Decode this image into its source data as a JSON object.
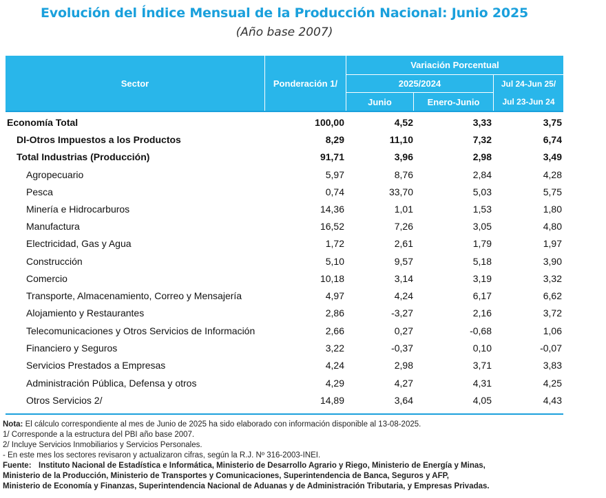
{
  "title": "Evolución del Índice Mensual de la Producción Nacional: Junio 2025",
  "subtitle": "(Año base 2007)",
  "header": {
    "sector": "Sector",
    "ponderacion": "Ponderación 1/",
    "variacion": "Variación Porcentual",
    "periodo": "2025/2024",
    "junio": "Junio",
    "enero_junio": "Enero-Junio",
    "anual_1": "Jul 24-Jun 25/",
    "anual_2": "Jul 23-Jun 24"
  },
  "rows": [
    {
      "sector": "Economía Total",
      "ponderacion": "100,00",
      "junio": "4,52",
      "enero_junio": "3,33",
      "anual": "3,75"
    },
    {
      "sector": "DI-Otros Impuestos a los Productos",
      "ponderacion": "8,29",
      "junio": "11,10",
      "enero_junio": "7,32",
      "anual": "6,74"
    },
    {
      "sector": "Total  Industrias (Producción)",
      "ponderacion": "91,71",
      "junio": "3,96",
      "enero_junio": "2,98",
      "anual": "3,49"
    },
    {
      "sector": "Agropecuario",
      "ponderacion": "5,97",
      "junio": "8,76",
      "enero_junio": "2,84",
      "anual": "4,28"
    },
    {
      "sector": "Pesca",
      "ponderacion": "0,74",
      "junio": "33,70",
      "enero_junio": "5,03",
      "anual": "5,75"
    },
    {
      "sector": "Minería e Hidrocarburos",
      "ponderacion": "14,36",
      "junio": "1,01",
      "enero_junio": "1,53",
      "anual": "1,80"
    },
    {
      "sector": "Manufactura",
      "ponderacion": "16,52",
      "junio": "7,26",
      "enero_junio": "3,05",
      "anual": "4,80"
    },
    {
      "sector": "Electricidad, Gas y Agua",
      "ponderacion": "1,72",
      "junio": "2,61",
      "enero_junio": "1,79",
      "anual": "1,97"
    },
    {
      "sector": "Construcción",
      "ponderacion": "5,10",
      "junio": "9,57",
      "enero_junio": "5,18",
      "anual": "3,90"
    },
    {
      "sector": "Comercio",
      "ponderacion": "10,18",
      "junio": "3,14",
      "enero_junio": "3,19",
      "anual": "3,32"
    },
    {
      "sector": "Transporte, Almacenamiento, Correo y Mensajería",
      "ponderacion": "4,97",
      "junio": "4,24",
      "enero_junio": "6,17",
      "anual": "6,62"
    },
    {
      "sector": "Alojamiento y Restaurantes",
      "ponderacion": "2,86",
      "junio": "-3,27",
      "enero_junio": "2,16",
      "anual": "3,72"
    },
    {
      "sector": "Telecomunicaciones y Otros Servicios de Información",
      "ponderacion": "2,66",
      "junio": "0,27",
      "enero_junio": "-0,68",
      "anual": "1,06"
    },
    {
      "sector": "Financiero y Seguros",
      "ponderacion": "3,22",
      "junio": "-0,37",
      "enero_junio": "0,10",
      "anual": "-0,07"
    },
    {
      "sector": "Servicios Prestados a Empresas",
      "ponderacion": "4,24",
      "junio": "2,98",
      "enero_junio": "3,71",
      "anual": "3,83"
    },
    {
      "sector": "Administración Pública, Defensa y otros",
      "ponderacion": "4,29",
      "junio": "4,27",
      "enero_junio": "4,31",
      "anual": "4,25"
    },
    {
      "sector": "Otros Servicios 2/",
      "ponderacion": "14,89",
      "junio": "3,64",
      "enero_junio": "4,05",
      "anual": "4,43"
    }
  ],
  "notes": {
    "nota_label": "Nota:",
    "nota_text": "El cálculo correspondiente al mes de Junio de 2025 ha sido elaborado con información disponible al 13-08-2025.",
    "n1": "1/ Corresponde a la estructura del PBI año base 2007.",
    "n2": "2/ Incluye Servicios Inmobiliarios y Servicios Personales.",
    "n3": "- En este mes los sectores revisaron y actualizaron cifras, según la R.J. Nº 316-2003-INEI.",
    "fuente_label": "Fuente:",
    "fuente_1": "Instituto Nacional de Estadística e Informática, Ministerio de Desarrollo Agrario y Riego, Ministerio de Energía y Minas,",
    "fuente_2": "Ministerio de la Producción, Ministerio de Transportes y Comunicaciones, Superintendencia de Banca, Seguros y AFP,",
    "fuente_3": "Ministerio de Economía y Finanzas, Superintendencia Nacional de Aduanas y de Administración Tributaria, y Empresas Privadas."
  }
}
